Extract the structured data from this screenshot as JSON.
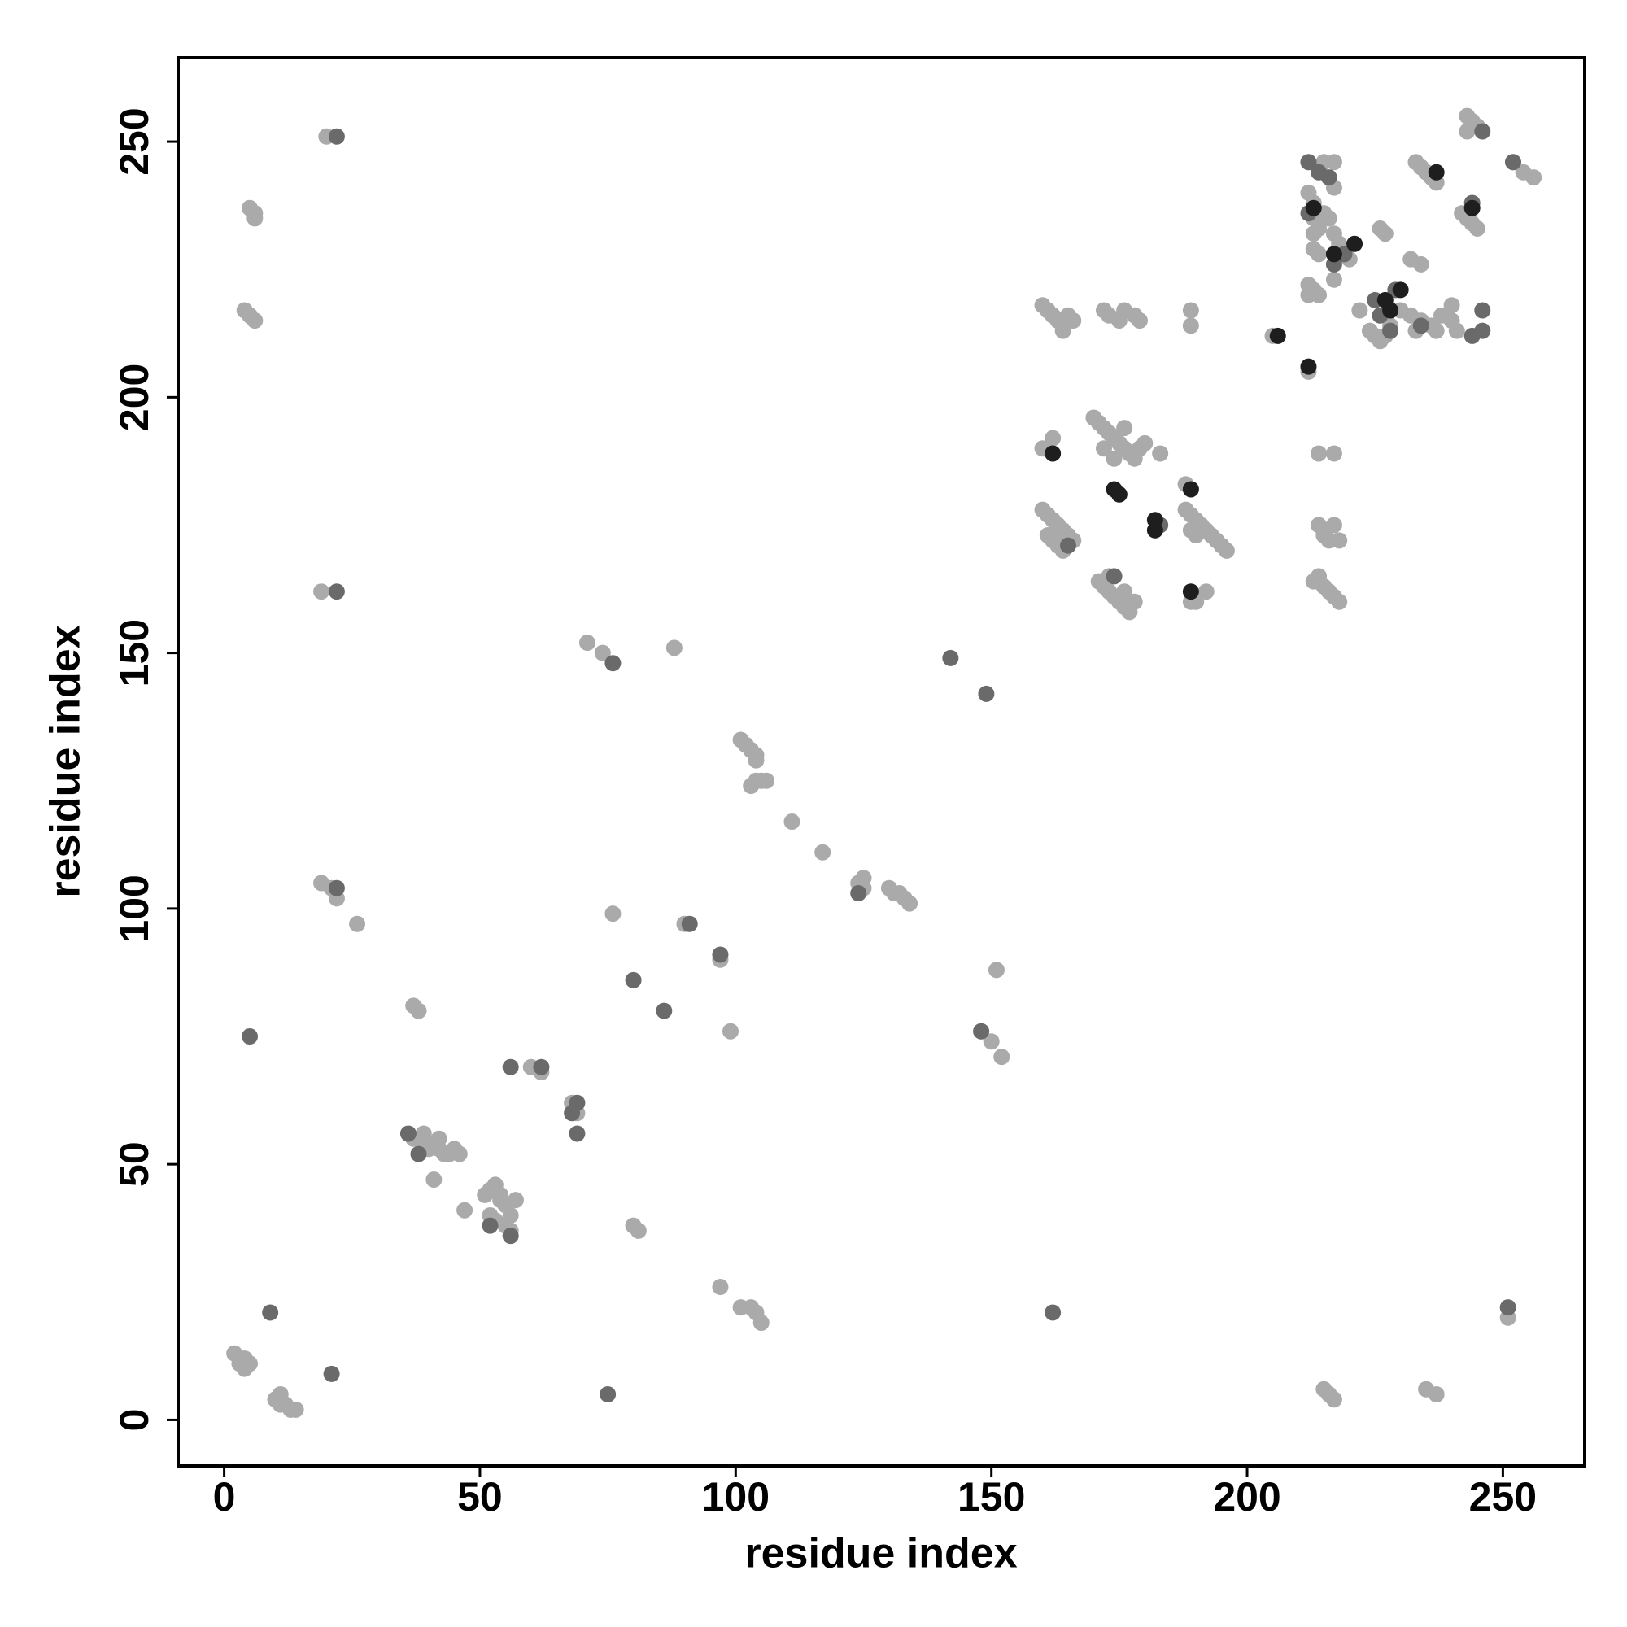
{
  "chart_data": {
    "type": "scatter",
    "x_label": "residue index",
    "y_label": "residue index",
    "xlim": [
      -9,
      266
    ],
    "ylim": [
      -9,
      266.4
    ],
    "xticks": [
      0,
      50,
      100,
      150,
      200,
      250
    ],
    "yticks": [
      0,
      50,
      100,
      150,
      200,
      250
    ],
    "grid": false,
    "series": [
      {
        "color": "#aaaaaa",
        "x": [
          2,
          3,
          3,
          4,
          4,
          5,
          10,
          11,
          12,
          13,
          14,
          11,
          4,
          5,
          6,
          5,
          6,
          6,
          20,
          19,
          19,
          21,
          22,
          26,
          37,
          38,
          37,
          38,
          39,
          40,
          41,
          42,
          43,
          44,
          45,
          46,
          39,
          42,
          41,
          47,
          51,
          52,
          53,
          54,
          55,
          56,
          57,
          52,
          53,
          55,
          56,
          54,
          80,
          81,
          60,
          62,
          68,
          69,
          71,
          74,
          76,
          88,
          90,
          97,
          97,
          99,
          101,
          103,
          104,
          105,
          101,
          102,
          103,
          104,
          104,
          104,
          105,
          106,
          103,
          111,
          117,
          124,
          125,
          125,
          130,
          131,
          132,
          133,
          134,
          150,
          151,
          152,
          160,
          161,
          162,
          163,
          164,
          165,
          161,
          162,
          163,
          164,
          166,
          160,
          162,
          160,
          161,
          162,
          163,
          164,
          165,
          166,
          164,
          170,
          171,
          172,
          173,
          174,
          175,
          176,
          177,
          178,
          179,
          180,
          172,
          174,
          176,
          171,
          172,
          173,
          174,
          175,
          176,
          177,
          178,
          176,
          173,
          172,
          173,
          175,
          176,
          178,
          179,
          183,
          189,
          189,
          188,
          189,
          188,
          189,
          190,
          191,
          192,
          193,
          194,
          195,
          196,
          189,
          190,
          189,
          190,
          192,
          205,
          212,
          212,
          213,
          214,
          212,
          212,
          213,
          213,
          213,
          213,
          214,
          215,
          216,
          217,
          218,
          214,
          217,
          215,
          217,
          217,
          213,
          214,
          215,
          216,
          217,
          218,
          214,
          215,
          216,
          217,
          218,
          214,
          217,
          215,
          216,
          217,
          220,
          222,
          224,
          225,
          226,
          227,
          228,
          226,
          227,
          230,
          232,
          234,
          236,
          238,
          240,
          233,
          237,
          241,
          232,
          234,
          233,
          234,
          235,
          236,
          237,
          235,
          237,
          240,
          242,
          243,
          244,
          245,
          243,
          244,
          245,
          243,
          252,
          254,
          256,
          251
        ],
        "values": [
          13,
          12,
          11,
          10,
          12,
          11,
          4,
          3,
          3,
          2,
          2,
          5,
          217,
          216,
          215,
          237,
          236,
          235,
          251,
          162,
          105,
          104,
          102,
          97,
          81,
          80,
          55,
          55,
          54,
          53,
          54,
          53,
          52,
          52,
          53,
          52,
          56,
          55,
          47,
          41,
          44,
          45,
          46,
          43,
          42,
          40,
          43,
          40,
          39,
          38,
          37,
          44,
          38,
          37,
          69,
          68,
          62,
          60,
          152,
          150,
          99,
          151,
          97,
          26,
          90,
          76,
          22,
          22,
          21,
          19,
          133,
          132,
          131,
          130,
          129,
          125,
          125,
          125,
          124,
          117,
          111,
          105,
          104,
          106,
          104,
          103,
          103,
          102,
          101,
          74,
          88,
          71,
          178,
          177,
          176,
          175,
          174,
          173,
          173,
          172,
          171,
          170,
          172,
          190,
          192,
          218,
          217,
          216,
          215,
          214,
          216,
          215,
          213,
          196,
          195,
          194,
          193,
          192,
          191,
          190,
          189,
          188,
          190,
          191,
          190,
          188,
          194,
          164,
          163,
          162,
          161,
          160,
          159,
          158,
          160,
          162,
          165,
          217,
          216,
          215,
          217,
          216,
          215,
          189,
          217,
          214,
          183,
          182,
          178,
          177,
          176,
          175,
          174,
          173,
          172,
          171,
          170,
          174,
          173,
          160,
          160,
          162,
          212,
          205,
          222,
          221,
          220,
          220,
          240,
          238,
          235,
          232,
          229,
          233,
          236,
          235,
          232,
          230,
          228,
          241,
          246,
          246,
          223,
          164,
          165,
          163,
          162,
          161,
          160,
          175,
          173,
          172,
          175,
          172,
          189,
          189,
          6,
          5,
          4,
          227,
          217,
          213,
          212,
          211,
          212,
          214,
          233,
          232,
          217,
          216,
          215,
          214,
          216,
          215,
          213,
          213,
          213,
          227,
          226,
          246,
          245,
          244,
          243,
          242,
          6,
          5,
          218,
          236,
          235,
          234,
          233,
          255,
          254,
          253,
          252,
          246,
          244,
          243,
          20
        ]
      },
      {
        "color": "#6a6a6a",
        "x": [
          5,
          9,
          21,
          22,
          22,
          22,
          36,
          38,
          52,
          56,
          56,
          62,
          68,
          69,
          69,
          75,
          76,
          80,
          86,
          91,
          97,
          124,
          142,
          148,
          149,
          162,
          165,
          174,
          183,
          212,
          214,
          216,
          217,
          219,
          225,
          226,
          228,
          229,
          234,
          244,
          246,
          246,
          212,
          246,
          252,
          251,
          244
        ],
        "values": [
          75,
          21,
          9,
          162,
          104,
          251,
          56,
          52,
          38,
          36,
          69,
          69,
          60,
          62,
          56,
          5,
          148,
          86,
          80,
          97,
          91,
          103,
          149,
          76,
          142,
          21,
          171,
          165,
          175,
          246,
          244,
          243,
          226,
          228,
          219,
          216,
          213,
          221,
          214,
          212,
          217,
          213,
          236,
          252,
          246,
          22,
          238
        ]
      },
      {
        "color": "#1e1e1e",
        "x": [
          162,
          174,
          175,
          182,
          182,
          189,
          189,
          206,
          212,
          221,
          230,
          228,
          217,
          237,
          244,
          213,
          227
        ],
        "values": [
          189,
          182,
          181,
          176,
          174,
          182,
          162,
          212,
          206,
          230,
          221,
          217,
          228,
          244,
          237,
          237,
          219
        ]
      }
    ]
  }
}
